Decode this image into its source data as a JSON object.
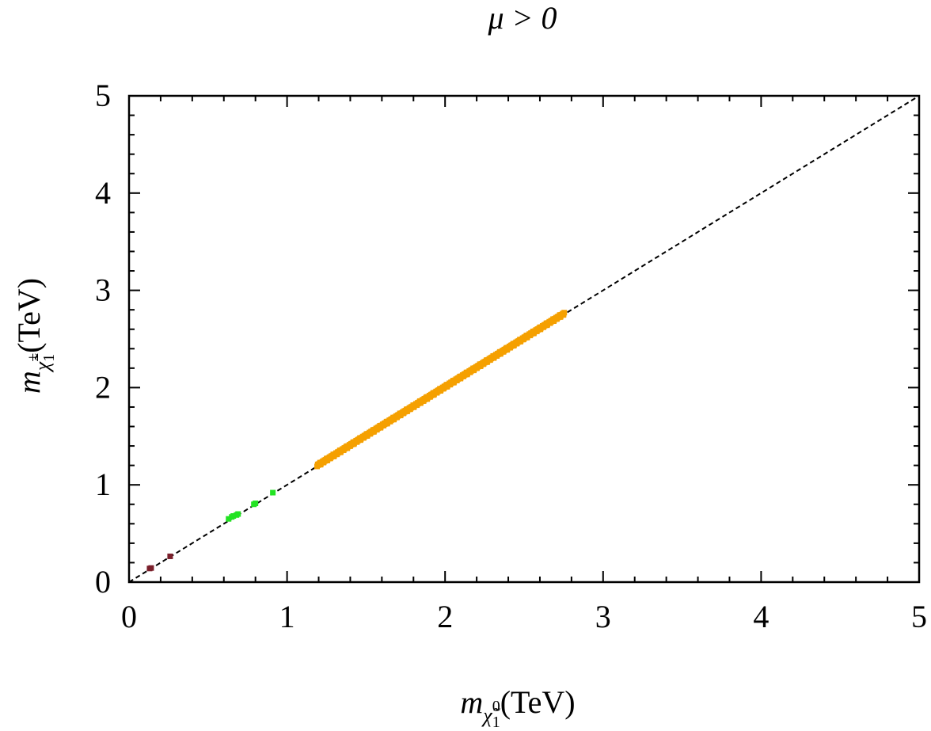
{
  "chart_data": {
    "type": "scatter",
    "title": "μ > 0",
    "xlabel": "(TeV)",
    "xlabel_symbol": "m",
    "xlabel_sub": "χ̃",
    "xlabel_sub_index": "1",
    "xlabel_sub_sup": "0",
    "ylabel": "(TeV)",
    "ylabel_symbol": "m",
    "ylabel_sub": "χ̃",
    "ylabel_sub_index": "1",
    "ylabel_sub_sup": "±",
    "xlim": [
      0,
      5
    ],
    "ylim": [
      0,
      5
    ],
    "xticks": [
      "0",
      "1",
      "2",
      "3",
      "4",
      "5"
    ],
    "yticks": [
      "0",
      "1",
      "2",
      "3",
      "4",
      "5"
    ],
    "grid": false,
    "reference_line": {
      "style": "dashed",
      "from": [
        0,
        0
      ],
      "to": [
        5,
        5
      ],
      "color": "#000000"
    },
    "series": [
      {
        "color": "#7a1f2b",
        "points": [
          [
            0.13,
            0.14
          ],
          [
            0.14,
            0.145
          ],
          [
            0.26,
            0.265
          ]
        ]
      },
      {
        "color": "#22e322",
        "points": [
          [
            0.63,
            0.65
          ],
          [
            0.65,
            0.67
          ],
          [
            0.66,
            0.68
          ],
          [
            0.68,
            0.69
          ],
          [
            0.69,
            0.7
          ],
          [
            0.79,
            0.8
          ],
          [
            0.8,
            0.81
          ],
          [
            0.91,
            0.92
          ]
        ]
      },
      {
        "color": "#f5a000",
        "band": {
          "x_start": 1.19,
          "x_end": 2.75,
          "y_start": 1.2,
          "y_end": 2.76,
          "count": 260
        }
      }
    ]
  }
}
